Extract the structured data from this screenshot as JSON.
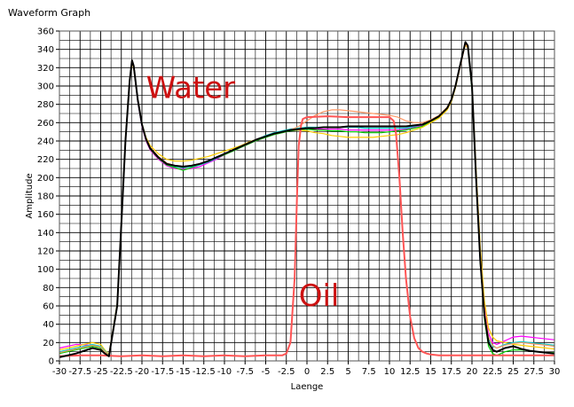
{
  "window": {
    "title": "Waveform Graph"
  },
  "chart_data": {
    "type": "line",
    "title": "",
    "xlabel": "Laenge",
    "ylabel": "Amplitude",
    "xlim": [
      -30,
      30
    ],
    "ylim": [
      0,
      360
    ],
    "x_ticks": [
      -30,
      -27.5,
      -25,
      -22.5,
      -20,
      -17.5,
      -15,
      -12.5,
      -10,
      -7.5,
      -5,
      -2.5,
      0,
      2.5,
      5,
      7.5,
      10,
      12.5,
      15,
      17.5,
      20,
      22.5,
      25,
      27.5,
      30
    ],
    "y_ticks": [
      0,
      20,
      40,
      60,
      80,
      100,
      120,
      140,
      160,
      180,
      200,
      220,
      240,
      260,
      280,
      300,
      320,
      340,
      360
    ],
    "grid": true,
    "annotations": [
      {
        "text": "Water",
        "x": -19.5,
        "y": 287,
        "color": "#cc1111"
      },
      {
        "text": "Oil",
        "x": -1,
        "y": 60,
        "color": "#cc1111"
      }
    ],
    "series": [
      {
        "color": "#000000",
        "width": 2,
        "x": [
          -30,
          -28,
          -26,
          -25,
          -24.5,
          -24,
          -23,
          -22.5,
          -22,
          -21.5,
          -21.2,
          -21,
          -20.5,
          -20,
          -19.5,
          -19,
          -18,
          -17,
          -16,
          -15,
          -14,
          -13,
          -12,
          -11,
          -10,
          -9,
          -8,
          -7,
          -6,
          -5,
          -4,
          -3,
          -2,
          -1,
          0,
          1,
          2,
          3,
          4,
          5,
          6,
          7,
          8,
          9,
          10,
          11,
          12,
          13,
          14,
          15,
          16,
          17,
          17.5,
          18,
          18.5,
          19,
          19.2,
          19.5,
          20,
          20.5,
          21,
          21.5,
          22,
          22.5,
          23,
          24,
          25,
          26,
          27,
          28,
          29,
          30
        ],
        "y": [
          4,
          8,
          14,
          12,
          8,
          5,
          60,
          150,
          240,
          305,
          328,
          322,
          285,
          258,
          242,
          232,
          222,
          215,
          213,
          212,
          213,
          215,
          218,
          222,
          226,
          230,
          234,
          238,
          242,
          245,
          248,
          250,
          252,
          253,
          254,
          254,
          255,
          255,
          255,
          256,
          256,
          256,
          256,
          256,
          256,
          256,
          256,
          257,
          258,
          262,
          267,
          276,
          285,
          300,
          320,
          340,
          348,
          344,
          300,
          200,
          110,
          50,
          20,
          12,
          10,
          14,
          16,
          13,
          11,
          10,
          9,
          8
        ]
      },
      {
        "color": "#ff00ff",
        "width": 1.2,
        "x": [
          -30,
          -28,
          -26,
          -25,
          -24.5,
          -24,
          -23,
          -22.5,
          -22,
          -21.5,
          -21.2,
          -21,
          -20.5,
          -20,
          -19.5,
          -19,
          -18,
          -17,
          -16,
          -15,
          -14,
          -13,
          -12,
          -11,
          -10,
          -9,
          -8,
          -7,
          -6,
          -5,
          -4,
          -3,
          -2,
          -1,
          0,
          1,
          2,
          3,
          4,
          5,
          6,
          7,
          8,
          9,
          10,
          11,
          12,
          13,
          14,
          15,
          16,
          17,
          17.5,
          18,
          18.5,
          19,
          19.2,
          19.5,
          20,
          20.5,
          21,
          21.5,
          22,
          22.5,
          23,
          24,
          25,
          26,
          27,
          28,
          29,
          30
        ],
        "y": [
          14,
          18,
          17,
          15,
          10,
          6,
          62,
          152,
          242,
          306,
          326,
          320,
          283,
          256,
          240,
          230,
          220,
          213,
          210,
          209,
          210,
          212,
          216,
          220,
          225,
          229,
          233,
          237,
          241,
          244,
          247,
          249,
          251,
          252,
          253,
          253,
          253,
          253,
          253,
          252,
          252,
          252,
          252,
          252,
          252,
          252,
          253,
          255,
          257,
          261,
          266,
          275,
          284,
          299,
          318,
          338,
          346,
          342,
          298,
          205,
          120,
          60,
          30,
          20,
          18,
          22,
          26,
          27,
          26,
          25,
          24,
          23
        ]
      },
      {
        "color": "#00cc00",
        "width": 1.2,
        "x": [
          -30,
          -28,
          -26,
          -25,
          -24.5,
          -24,
          -23,
          -22.5,
          -22,
          -21.5,
          -21.2,
          -21,
          -20.5,
          -20,
          -19.5,
          -19,
          -18,
          -17,
          -16,
          -15,
          -14,
          -13,
          -12,
          -11,
          -10,
          -9,
          -8,
          -7,
          -6,
          -5,
          -4,
          -3,
          -2,
          -1,
          0,
          1,
          2,
          3,
          4,
          5,
          6,
          7,
          8,
          9,
          10,
          11,
          12,
          13,
          14,
          15,
          16,
          17,
          17.5,
          18,
          18.5,
          19,
          19.2,
          19.5,
          20,
          20.5,
          21,
          21.5,
          22,
          22.5,
          23,
          24,
          25,
          26,
          27,
          28,
          29,
          30
        ],
        "y": [
          8,
          12,
          16,
          14,
          9,
          5,
          61,
          151,
          241,
          304,
          327,
          321,
          284,
          257,
          241,
          231,
          221,
          214,
          211,
          208,
          211,
          214,
          217,
          221,
          225,
          229,
          233,
          237,
          241,
          244,
          247,
          249,
          251,
          252,
          253,
          252,
          252,
          251,
          251,
          250,
          250,
          249,
          249,
          249,
          250,
          251,
          252,
          254,
          256,
          261,
          266,
          275,
          284,
          299,
          319,
          339,
          347,
          343,
          296,
          198,
          108,
          46,
          16,
          8,
          6,
          10,
          12,
          12,
          11,
          10,
          9,
          9
        ]
      },
      {
        "color": "#ffcc00",
        "width": 1.2,
        "x": [
          -30,
          -28,
          -26,
          -25,
          -24.5,
          -24,
          -23,
          -22.5,
          -22,
          -21.5,
          -21.2,
          -21,
          -20.5,
          -20,
          -19.5,
          -19,
          -18,
          -17,
          -16,
          -15,
          -14,
          -13,
          -12,
          -11,
          -10,
          -9,
          -8,
          -7,
          -6,
          -5,
          -4,
          -3,
          -2,
          -1,
          0,
          1,
          2,
          3,
          4,
          5,
          6,
          7,
          8,
          9,
          10,
          11,
          12,
          13,
          14,
          15,
          16,
          17,
          17.5,
          18,
          18.5,
          19,
          19.2,
          19.5,
          20,
          20.5,
          21,
          21.5,
          22,
          22.5,
          23,
          24,
          25,
          26,
          27,
          28,
          29,
          30
        ],
        "y": [
          12,
          16,
          20,
          18,
          12,
          7,
          63,
          153,
          243,
          307,
          325,
          319,
          286,
          259,
          244,
          235,
          226,
          220,
          218,
          218,
          219,
          221,
          223,
          226,
          229,
          232,
          235,
          239,
          242,
          245,
          248,
          250,
          252,
          252,
          251,
          249,
          248,
          246,
          245,
          244,
          244,
          244,
          244,
          245,
          246,
          247,
          249,
          252,
          255,
          260,
          265,
          274,
          283,
          298,
          318,
          338,
          345,
          341,
          302,
          210,
          125,
          66,
          36,
          26,
          22,
          20,
          18,
          17,
          16,
          15,
          14,
          13
        ]
      },
      {
        "color": "#00cccc",
        "width": 1.2,
        "x": [
          -30,
          -28,
          -26,
          -25,
          -24.5,
          -24,
          -23,
          -22.5,
          -22,
          -21.5,
          -21.2,
          -21,
          -20.5,
          -20,
          -19.5,
          -19,
          -18,
          -17,
          -16,
          -15,
          -14,
          -13,
          -12,
          -11,
          -10,
          -9,
          -8,
          -7,
          -6,
          -5,
          -4,
          -3,
          -2,
          -1,
          0,
          1,
          2,
          3,
          4,
          5,
          6,
          7,
          8,
          9,
          10,
          11,
          12,
          13,
          14,
          15,
          16,
          17,
          17.5,
          18,
          18.5,
          19,
          19.2,
          19.5,
          20,
          20.5,
          21,
          21.5,
          22,
          22.5,
          23,
          24,
          25,
          26,
          27,
          28,
          29,
          30
        ],
        "y": [
          10,
          14,
          18,
          16,
          11,
          6,
          62,
          152,
          242,
          305,
          326,
          320,
          284,
          257,
          242,
          232,
          222,
          215,
          212,
          211,
          212,
          214,
          217,
          221,
          226,
          230,
          234,
          238,
          242,
          246,
          249,
          251,
          253,
          254,
          255,
          255,
          255,
          255,
          255,
          255,
          255,
          254,
          254,
          254,
          254,
          254,
          254,
          256,
          258,
          262,
          267,
          276,
          285,
          300,
          320,
          339,
          347,
          343,
          299,
          202,
          114,
          54,
          24,
          16,
          14,
          18,
          20,
          21,
          20,
          19,
          18,
          17
        ]
      },
      {
        "color": "#ff9966",
        "width": 1.2,
        "x": [
          -30,
          -28,
          -26,
          -25,
          -24.5,
          -24,
          -23,
          -22.5,
          -22,
          -21.5,
          -21.2,
          -21,
          -20.5,
          -20,
          -19.5,
          -19,
          -18,
          -17,
          -16,
          -15,
          -14,
          -13,
          -12,
          -11,
          -10,
          -9,
          -8,
          -7,
          -6,
          -5,
          -4,
          -3,
          -2,
          -1,
          0,
          1,
          2,
          3,
          4,
          5,
          6,
          7,
          8,
          9,
          10,
          11,
          12,
          13,
          14,
          15,
          16,
          17,
          17.5,
          18,
          18.5,
          19,
          19.2,
          19.5,
          20,
          20.5,
          21,
          21.5,
          22,
          22.5,
          23,
          24,
          25,
          26,
          27,
          28,
          29,
          30
        ],
        "y": [
          9,
          13,
          17,
          15,
          10,
          6,
          61,
          151,
          241,
          305,
          326,
          320,
          285,
          258,
          243,
          233,
          223,
          216,
          213,
          212,
          213,
          215,
          218,
          222,
          226,
          230,
          234,
          238,
          242,
          245,
          248,
          250,
          252,
          256,
          262,
          268,
          272,
          274,
          274,
          273,
          272,
          271,
          270,
          269,
          268,
          266,
          262,
          260,
          260,
          263,
          268,
          277,
          286,
          301,
          320,
          339,
          346,
          342,
          300,
          204,
          116,
          56,
          26,
          17,
          14,
          17,
          19,
          20,
          19,
          18,
          17,
          16
        ]
      },
      {
        "color": "#ff5555",
        "width": 2,
        "x": [
          -30,
          -27.5,
          -25,
          -22.5,
          -20,
          -17.5,
          -15,
          -12.5,
          -10,
          -7.5,
          -5,
          -3,
          -2.5,
          -2,
          -1.5,
          -1.2,
          -1,
          -0.7,
          -0.5,
          0,
          2.5,
          5,
          7.5,
          10,
          10.5,
          10.8,
          11.2,
          11.6,
          12,
          12.5,
          13,
          13.5,
          14,
          14.5,
          15,
          16,
          17.5,
          20,
          22.5,
          25,
          27.5,
          30
        ],
        "y": [
          5,
          6,
          6,
          5,
          6,
          5,
          6,
          5,
          6,
          5,
          6,
          6,
          8,
          20,
          90,
          180,
          235,
          258,
          264,
          266,
          267,
          266,
          266,
          266,
          262,
          248,
          200,
          140,
          90,
          48,
          25,
          14,
          10,
          8,
          7,
          6,
          6,
          6,
          6,
          6,
          6,
          6
        ]
      }
    ]
  }
}
